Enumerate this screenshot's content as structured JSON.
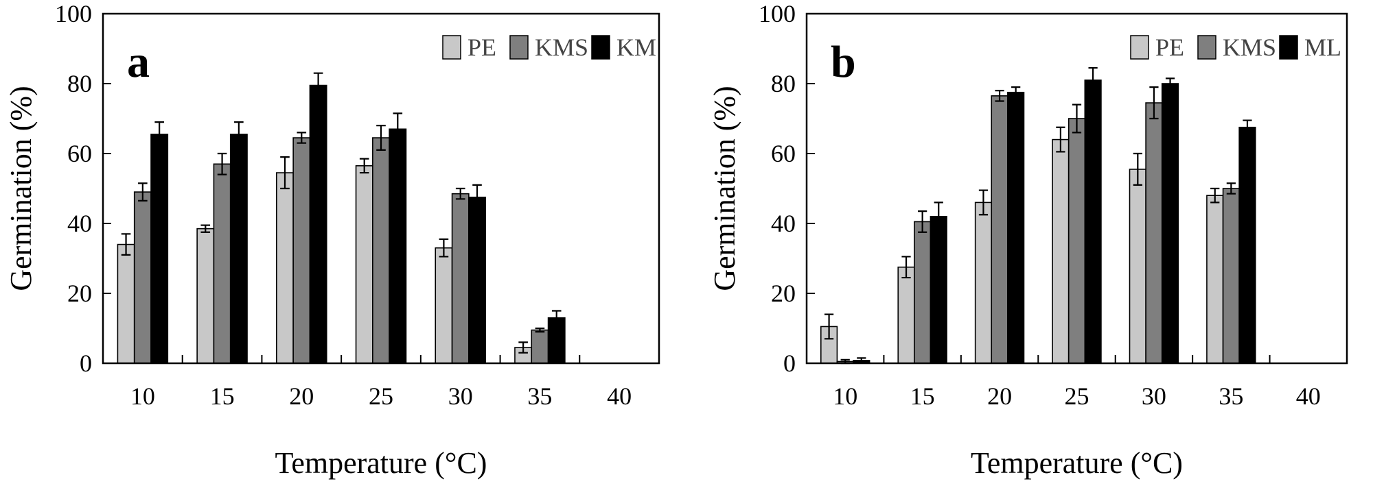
{
  "chart_data": [
    {
      "type": "bar",
      "panel_label": "a",
      "categories": [
        "10",
        "15",
        "20",
        "25",
        "30",
        "35",
        "40"
      ],
      "series": [
        {
          "name": "PE",
          "color": "#c8c8c8",
          "values": [
            34,
            38.5,
            54.5,
            56.5,
            33,
            4.5,
            0
          ],
          "errors": [
            3,
            1,
            4.5,
            2,
            2.5,
            1.5,
            0
          ]
        },
        {
          "name": "KMS",
          "color": "#7f7f7f",
          "values": [
            49,
            57,
            64.5,
            64.5,
            48.5,
            9.5,
            0
          ],
          "errors": [
            2.5,
            3,
            1.5,
            3.5,
            1.5,
            0.5,
            0
          ]
        },
        {
          "name": "KM",
          "color": "#000000",
          "values": [
            65.5,
            65.5,
            79.5,
            67,
            47.5,
            13,
            0
          ],
          "errors": [
            3.5,
            3.5,
            3.5,
            4.5,
            3.5,
            2,
            0
          ]
        }
      ],
      "ylabel": "Germination (%)",
      "xlabel": "Temperature (°C)",
      "ylim": [
        0,
        100
      ],
      "yticks": [
        "0",
        "20",
        "40",
        "60",
        "80",
        "100"
      ],
      "legend_position": "top-right",
      "grid": false
    },
    {
      "type": "bar",
      "panel_label": "b",
      "categories": [
        "10",
        "15",
        "20",
        "25",
        "30",
        "35",
        "40"
      ],
      "series": [
        {
          "name": "PE",
          "color": "#c8c8c8",
          "values": [
            10.5,
            27.5,
            46,
            64,
            55.5,
            48,
            0
          ],
          "errors": [
            3.5,
            3,
            3.5,
            3.5,
            4.5,
            2,
            0
          ]
        },
        {
          "name": "KMS",
          "color": "#7f7f7f",
          "values": [
            0.5,
            40.5,
            76.5,
            70,
            74.5,
            50,
            0
          ],
          "errors": [
            0.5,
            3,
            1.5,
            4,
            4.5,
            1.5,
            0
          ]
        },
        {
          "name": "ML",
          "color": "#000000",
          "values": [
            0.8,
            42,
            77.5,
            81,
            80,
            67.5,
            0
          ],
          "errors": [
            0.7,
            4,
            1.5,
            3.5,
            1.5,
            2,
            0
          ]
        }
      ],
      "ylabel": "Germination (%)",
      "xlabel": "Temperature (°C)",
      "ylim": [
        0,
        100
      ],
      "yticks": [
        "0",
        "20",
        "40",
        "60",
        "80",
        "100"
      ],
      "legend_position": "top-right",
      "grid": false
    }
  ]
}
